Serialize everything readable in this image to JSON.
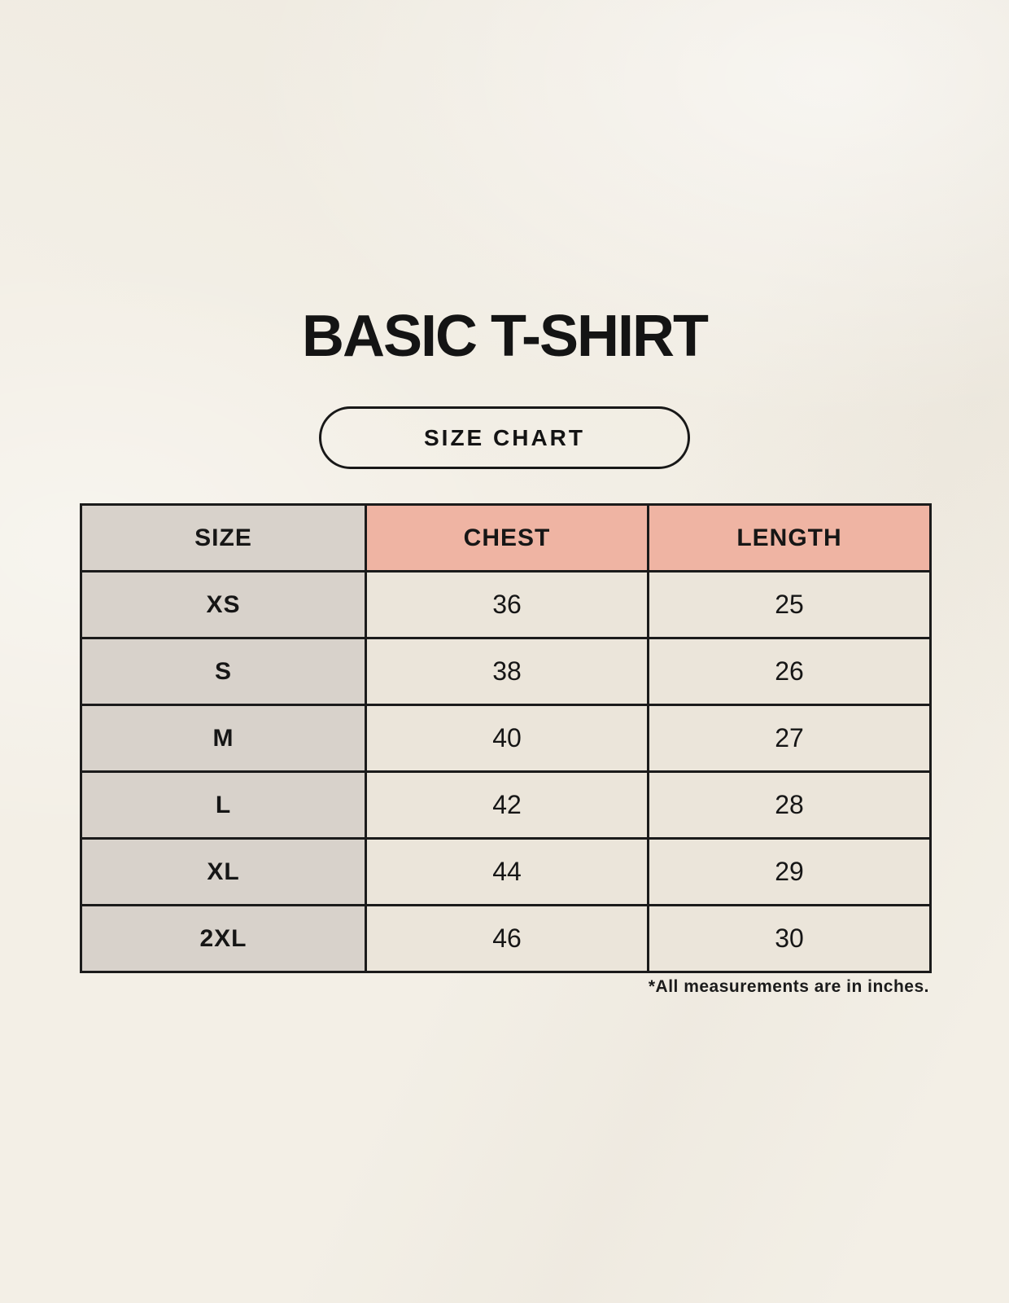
{
  "page": {
    "title": "BASIC T-SHIRT",
    "size_chart_label": "SIZE CHART",
    "footnote": "*All measurements are in inches."
  },
  "colors": {
    "background": "#f3efe6",
    "size_column_bg": "#d8d2cb",
    "measure_header_bg": "#efb4a3",
    "data_cell_bg": "#ebe5da",
    "border": "#1b1b1b",
    "text": "#161616"
  },
  "chart_data": {
    "type": "table",
    "title": "BASIC T-SHIRT",
    "columns": [
      "SIZE",
      "CHEST",
      "LENGTH"
    ],
    "units_note": "*All measurements are in inches.",
    "rows": [
      {
        "size": "XS",
        "chest": "36",
        "length": "25"
      },
      {
        "size": "S",
        "chest": "38",
        "length": "26"
      },
      {
        "size": "M",
        "chest": "40",
        "length": "27"
      },
      {
        "size": "L",
        "chest": "42",
        "length": "28"
      },
      {
        "size": "XL",
        "chest": "44",
        "length": "29"
      },
      {
        "size": "2XL",
        "chest": "46",
        "length": "30"
      }
    ]
  }
}
